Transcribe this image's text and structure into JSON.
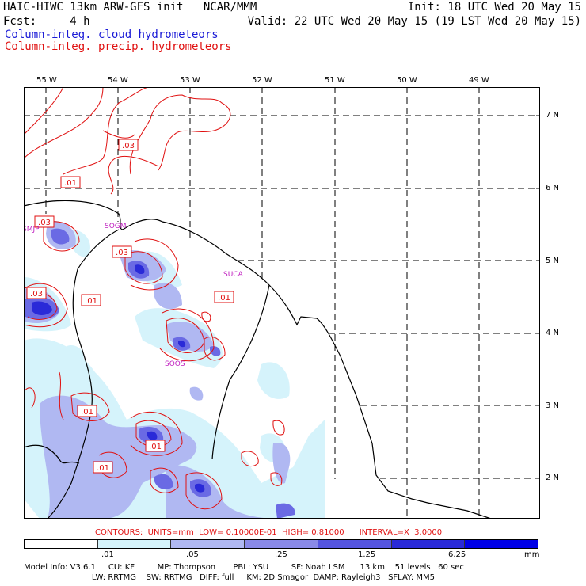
{
  "header": {
    "line1_left": "HAIC-HIWC 13km ARW-GFS init   NCAR/MMM",
    "line1_right": "Init: 18 UTC Wed 20 May 15",
    "line2_left": "Fcst:     4 h",
    "line2_right": "Valid: 22 UTC Wed 20 May 15 (19 LST Wed 20 May 15)",
    "legend_cloud": "Column-integ. cloud hydrometeors",
    "legend_precip": "Column-integ. precip. hydrometeors"
  },
  "map": {
    "lon_labels": [
      "55 W",
      "54 W",
      "53 W",
      "52 W",
      "51 W",
      "50 W",
      "49 W"
    ],
    "lat_labels": [
      "7 N",
      "6 N",
      "5 N",
      "4 N",
      "3 N",
      "2 N"
    ],
    "stations": [
      "SMJP",
      "SOGM",
      "SUCA",
      "SOOS"
    ],
    "contour_labels": [
      ".03",
      ".01",
      ".03",
      ".03",
      ".03",
      ".01",
      ".01",
      ".01",
      ".01",
      ".01"
    ]
  },
  "contours_line": "CONTOURS:  UNITS=mm  LOW= 0.10000E-01  HIGH= 0.81000      INTERVAL=X  3.0000",
  "colorbar": {
    "labels": [
      ".01",
      ".05",
      ".25",
      "1.25",
      "6.25",
      "mm"
    ],
    "colors": [
      "#ffffff",
      "#d5f3fb",
      "#b0b8f2",
      "#8a8ae8",
      "#5555e0",
      "#2a2ad8",
      "#0000e6"
    ]
  },
  "model_info": {
    "line1": "Model Info: V3.6.1     CU: KF         MP: Thompson       PBL: YSU         SF: Noah LSM      13 km    51 levels   60 sec",
    "line2": "                           LW: RRTMG    SW: RRTMG   DIFF: full     KM: 2D Smagor  DAMP: Rayleigh3   SFLAY: MM5"
  }
}
